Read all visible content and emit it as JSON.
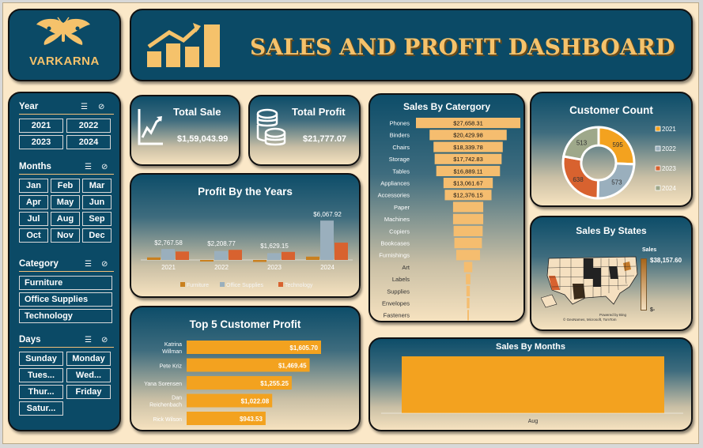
{
  "brand": {
    "name": "VARKARNA"
  },
  "header": {
    "title": "SALES AND PROFIT DASHBOARD"
  },
  "filters": {
    "year": {
      "label": "Year",
      "options": [
        "2021",
        "2022",
        "2023",
        "2024"
      ]
    },
    "months": {
      "label": "Months",
      "options": [
        "Jan",
        "Feb",
        "Mar",
        "Apr",
        "May",
        "Jun",
        "Jul",
        "Aug",
        "Sep",
        "Oct",
        "Nov",
        "Dec"
      ]
    },
    "category": {
      "label": "Category",
      "options": [
        "Furniture",
        "Office Supplies",
        "Technology"
      ]
    },
    "days": {
      "label": "Days",
      "options": [
        "Sunday",
        "Monday",
        "Tues...",
        "Wed...",
        "Thur...",
        "Friday",
        "Satur..."
      ]
    }
  },
  "kpis": {
    "total_sale": {
      "label": "Total Sale",
      "value": "$1,59,043.99"
    },
    "total_profit": {
      "label": "Total Profit",
      "value": "$21,777.07"
    }
  },
  "colors": {
    "orange": "#f3a21f",
    "navy": "#0b4a66",
    "furniture": "#c9801f",
    "office": "#9aafbd",
    "technology": "#d8622f",
    "gold_text": "#f5c26b"
  },
  "chart_data": [
    {
      "id": "profit_by_years",
      "type": "bar",
      "title": "Profit By the Years",
      "categories": [
        "2021",
        "2022",
        "2023",
        "2024"
      ],
      "series": [
        {
          "name": "Furniture",
          "values": [
            320,
            -200,
            -250,
            420
          ]
        },
        {
          "name": "Office Supplies",
          "values": [
            1380,
            1130,
            860,
            4980
          ]
        },
        {
          "name": "Technology",
          "values": [
            1067,
            1279,
            1019,
            2190
          ]
        }
      ],
      "totals": [
        "$2,767.58",
        "$2,208.77",
        "$1,629.15",
        "$6,067.92"
      ],
      "ylim": [
        -300,
        5100
      ]
    },
    {
      "id": "sales_by_category",
      "type": "bar",
      "orientation": "horizontal-funnel",
      "title": "Sales By Catergory",
      "categories": [
        "Phones",
        "Binders",
        "Chairs",
        "Storage",
        "Tables",
        "Appliances",
        "Accessories",
        "Paper",
        "Machines",
        "Copiers",
        "Bookcases",
        "Furnishings",
        "Art",
        "Labels",
        "Supplies",
        "Envelopes",
        "Fasteners"
      ],
      "values": [
        27658.31,
        20429.98,
        18339.78,
        17742.83,
        16889.11,
        13061.67,
        12376.15,
        8000,
        8000,
        7700,
        7300,
        6300,
        2200,
        1200,
        900,
        700,
        300
      ],
      "labels": [
        "$27,658.31",
        "$20,429.98",
        "$18,339.78",
        "$17,742.83",
        "$16,889.11",
        "$13,061.67",
        "$12,376.15",
        "",
        "",
        "",
        "",
        "",
        "",
        "",
        "",
        "",
        ""
      ]
    },
    {
      "id": "customer_count",
      "type": "pie",
      "title": "Customer Count",
      "categories": [
        "2021",
        "2022",
        "2023",
        "2024"
      ],
      "values": [
        595,
        573,
        638,
        513
      ],
      "colors": [
        "#f3a21f",
        "#9aafbd",
        "#d8622f",
        "#9ea88a"
      ]
    },
    {
      "id": "top5_customer_profit",
      "type": "bar",
      "orientation": "horizontal",
      "title": "Top 5 Customer Profit",
      "categories": [
        "Katrina Willman",
        "Pete Kriz",
        "Yana Sorensen",
        "Dan Reichenbach",
        "Rick Wilson"
      ],
      "values": [
        1605.7,
        1469.45,
        1255.25,
        1022.08,
        943.53
      ],
      "labels": [
        "$1,605.70",
        "$1,469.45",
        "$1,255.25",
        "$1,022.08",
        "$943.53"
      ]
    },
    {
      "id": "sales_by_months",
      "type": "bar",
      "title": "Sales By Months",
      "categories": [
        "Aug"
      ],
      "values": [
        1
      ]
    },
    {
      "id": "sales_by_states",
      "type": "heatmap",
      "title": "Sales By States",
      "legend_title": "Sales",
      "legend_max": "$38,157.60",
      "legend_min": "$-",
      "credit_1": "Powered by Bing",
      "credit_2": "© GeoNames, Microsoft, TomTom"
    }
  ]
}
